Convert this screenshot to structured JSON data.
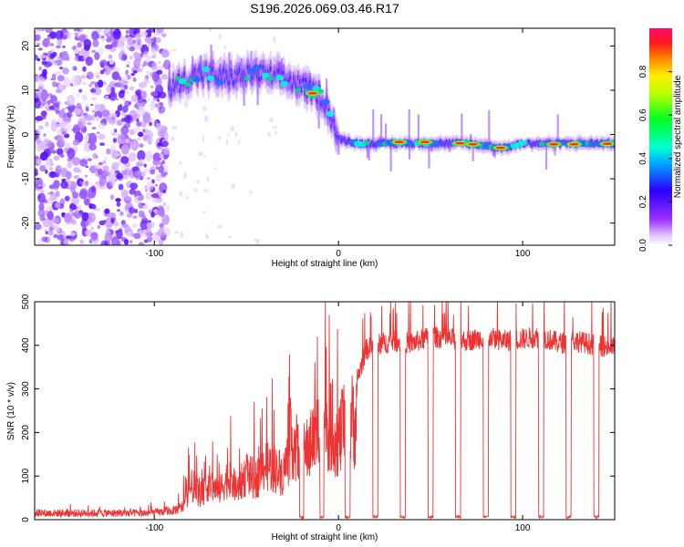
{
  "title": "S196.2026.069.03.46.R17",
  "colors": {
    "snr_line": "#ee3333",
    "track_core": "#ff2a2a",
    "background": "#ffffff"
  },
  "chart_data": [
    {
      "type": "heatmap",
      "xlabel": "Height of straight line (km)",
      "ylabel": "Frequency (Hz)",
      "xlim": [
        -165,
        150
      ],
      "ylim": [
        -25,
        24
      ],
      "x_ticks": [
        -100,
        0,
        100
      ],
      "y_ticks": [
        -20,
        -10,
        0,
        10,
        20
      ],
      "grid": false,
      "colorbar": {
        "label": "Normalized spectral amplitude",
        "range": [
          0,
          1
        ],
        "ticks": [
          "0.0",
          "0.2",
          "0.4",
          "0.6",
          "0.8"
        ],
        "colormap": "rainbow (violet → blue → cyan → green → yellow → orange → red → magenta)"
      },
      "track": {
        "x": [
          -92,
          -85,
          -75,
          -65,
          -55,
          -45,
          -35,
          -25,
          -15,
          -10,
          -5,
          0,
          10,
          20,
          30,
          40,
          50,
          60,
          70,
          80,
          90,
          100,
          110,
          120,
          130,
          140,
          150
        ],
        "frequency": [
          10,
          12,
          14,
          13,
          13,
          14,
          13,
          12,
          10,
          9,
          5,
          -1,
          -2,
          -2,
          -2,
          -2,
          -2,
          -2,
          -2,
          -2.5,
          -3,
          -2,
          -2,
          -2,
          -2,
          -2,
          -2
        ]
      },
      "noise_region": {
        "x": [
          -165,
          -93
        ],
        "frequency": [
          -25,
          24
        ]
      }
    },
    {
      "type": "line",
      "xlabel": "Height of straight line (km)",
      "ylabel": "SNR (10 * v/v)",
      "xlim": [
        -165,
        150
      ],
      "ylim": [
        0,
        500
      ],
      "x_ticks": [
        -100,
        0,
        100
      ],
      "y_ticks": [
        0,
        100,
        200,
        300,
        400,
        500
      ],
      "grid": false,
      "series": [
        {
          "x": [
            -165,
            -145,
            -125,
            -105,
            -95,
            -85,
            -80,
            -75,
            -70,
            -65,
            -60,
            -55,
            -50,
            -45,
            -40,
            -35,
            -30,
            -25,
            -20,
            -15,
            -10,
            -5,
            0,
            5,
            10,
            15,
            20,
            30,
            40,
            50,
            60,
            70,
            80,
            90,
            100,
            110,
            120,
            130,
            140,
            150
          ],
          "y": [
            15,
            15,
            15,
            15,
            18,
            40,
            110,
            80,
            120,
            90,
            140,
            100,
            150,
            130,
            180,
            170,
            150,
            260,
            200,
            250,
            300,
            310,
            260,
            330,
            320,
            390,
            400,
            410,
            405,
            420,
            415,
            410,
            420,
            410,
            415,
            420,
            405,
            410,
            400,
            395
          ]
        }
      ],
      "dropouts_x": [
        -20,
        -9,
        5,
        20,
        35,
        50,
        65,
        80,
        95,
        110,
        125,
        140
      ]
    }
  ]
}
